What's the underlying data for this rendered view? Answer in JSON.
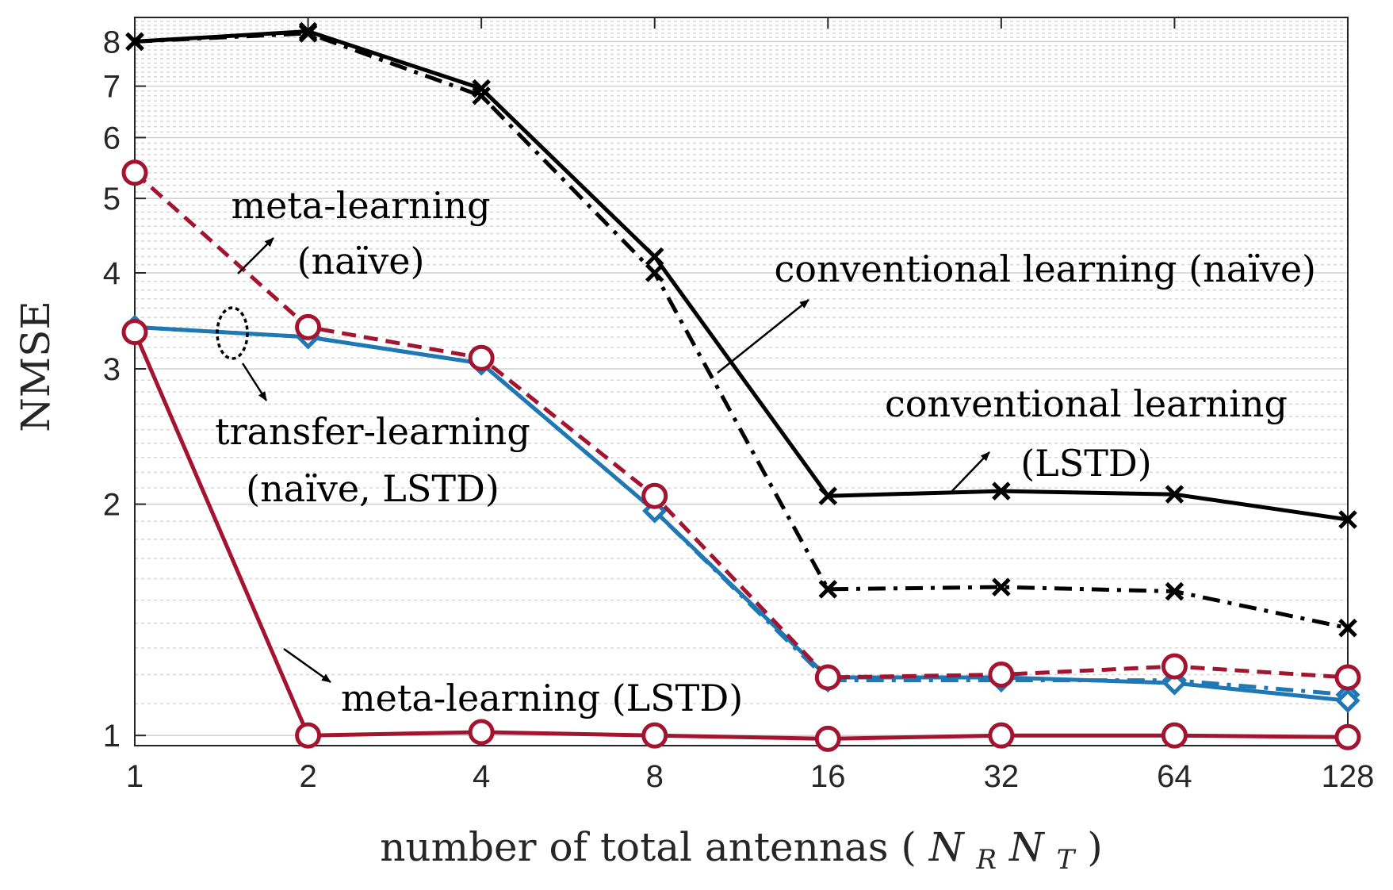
{
  "chart_data": {
    "type": "line",
    "title": "",
    "xlabel": "number of total antennas",
    "xlabel_math": {
      "base1": "N",
      "sub1": "R",
      "base2": "N",
      "sub2": "T"
    },
    "ylabel": "NMSE",
    "x_scale": "log2",
    "y_scale": "log",
    "x": [
      1,
      2,
      4,
      8,
      16,
      32,
      64,
      128
    ],
    "x_tick_labels": [
      "1",
      "2",
      "4",
      "8",
      "16",
      "32",
      "64",
      "128"
    ],
    "y_ticks": [
      1,
      2,
      3,
      4,
      5,
      6,
      7,
      8
    ],
    "y_tick_labels": [
      "1",
      "2",
      "3",
      "4",
      "5",
      "6",
      "7",
      "8"
    ],
    "xlim": [
      1,
      128
    ],
    "ylim": [
      0.97,
      8.6
    ],
    "grid": true,
    "legend": "none",
    "series": [
      {
        "name": "conventional learning (naïve)",
        "color": "#000000",
        "marker": "x",
        "line": "dashdot",
        "values": [
          8.0,
          8.2,
          6.8,
          4.0,
          1.55,
          1.56,
          1.54,
          1.38
        ]
      },
      {
        "name": "conventional learning (LSTD)",
        "color": "#000000",
        "marker": "x",
        "line": "solid",
        "values": [
          8.0,
          8.25,
          6.95,
          4.2,
          2.05,
          2.08,
          2.06,
          1.91
        ]
      },
      {
        "name": "transfer-learning (naïve)",
        "color": "#1f77b4",
        "marker": "diamond",
        "line": "dashdot",
        "values": [
          3.4,
          3.3,
          3.05,
          1.96,
          1.18,
          1.18,
          1.18,
          1.13
        ]
      },
      {
        "name": "transfer-learning (LSTD)",
        "color": "#1f77b4",
        "marker": "diamond",
        "line": "solid",
        "values": [
          3.4,
          3.3,
          3.05,
          1.96,
          1.19,
          1.19,
          1.17,
          1.11
        ]
      },
      {
        "name": "meta-learning (naïve)",
        "color": "#a2142f",
        "marker": "circle",
        "line": "dashed",
        "values": [
          5.4,
          3.4,
          3.1,
          2.05,
          1.19,
          1.2,
          1.23,
          1.19
        ]
      },
      {
        "name": "meta-learning (LSTD)",
        "color": "#a2142f",
        "marker": "circle",
        "line": "solid",
        "values": [
          3.35,
          1.0,
          1.01,
          1.0,
          0.99,
          1.0,
          1.0,
          0.995
        ]
      }
    ],
    "annotations": [
      {
        "id": "meta-naive",
        "lines": [
          "meta-learning",
          "(naïve)"
        ]
      },
      {
        "id": "conv-naive",
        "lines": [
          "conventional learning (naïve)"
        ]
      },
      {
        "id": "conv-lstd",
        "lines": [
          "conventional learning",
          "(LSTD)"
        ]
      },
      {
        "id": "transfer",
        "lines": [
          "transfer-learning",
          "(naïve, LSTD)"
        ]
      },
      {
        "id": "meta-lstd",
        "lines": [
          "meta-learning (LSTD)"
        ]
      }
    ]
  }
}
